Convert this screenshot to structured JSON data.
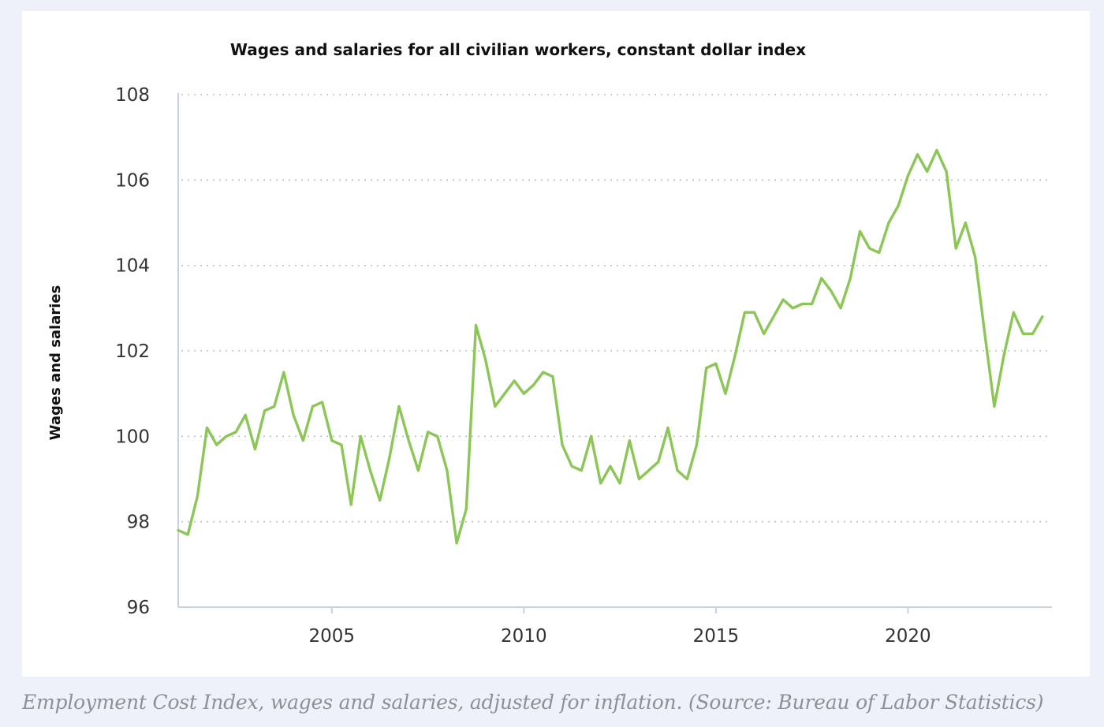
{
  "chart_data": {
    "type": "line",
    "title": "Wages and salaries for all civilian workers, constant dollar index",
    "xlabel": "",
    "ylabel": "Wages and salaries",
    "ylim": [
      96,
      108
    ],
    "yticks": [
      96,
      98,
      100,
      102,
      104,
      106,
      108
    ],
    "xlim": [
      2001,
      2023.75
    ],
    "xticks": [
      2005,
      2010,
      2015,
      2020
    ],
    "grid": "horizontal-dotted",
    "line_color": "#8cc656",
    "series": [
      {
        "x": [
          2001.0,
          2001.25,
          2001.5,
          2001.75,
          2002.0,
          2002.25,
          2002.5,
          2002.75,
          2003.0,
          2003.25,
          2003.5,
          2003.75,
          2004.0,
          2004.25,
          2004.5,
          2004.75,
          2005.0,
          2005.25,
          2005.5,
          2005.75,
          2006.0,
          2006.25,
          2006.5,
          2006.75,
          2007.0,
          2007.25,
          2007.5,
          2007.75,
          2008.0,
          2008.25,
          2008.5,
          2008.75,
          2009.0,
          2009.25,
          2009.5,
          2009.75,
          2010.0,
          2010.25,
          2010.5,
          2010.75,
          2011.0,
          2011.25,
          2011.5,
          2011.75,
          2012.0,
          2012.25,
          2012.5,
          2012.75,
          2013.0,
          2013.25,
          2013.5,
          2013.75,
          2014.0,
          2014.25,
          2014.5,
          2014.75,
          2015.0,
          2015.25,
          2015.5,
          2015.75,
          2016.0,
          2016.25,
          2016.5,
          2016.75,
          2017.0,
          2017.25,
          2017.5,
          2017.75,
          2018.0,
          2018.25,
          2018.5,
          2018.75,
          2019.0,
          2019.25,
          2019.5,
          2019.75,
          2020.0,
          2020.25,
          2020.5,
          2020.75,
          2021.0,
          2021.25,
          2021.5,
          2021.75,
          2022.0,
          2022.25,
          2022.5,
          2022.75,
          2023.0,
          2023.25,
          2023.5
        ],
        "y": [
          97.8,
          97.7,
          98.6,
          100.2,
          99.8,
          100.0,
          100.1,
          100.5,
          99.7,
          100.6,
          100.7,
          101.5,
          100.5,
          99.9,
          100.7,
          100.8,
          99.9,
          99.8,
          98.4,
          100.0,
          99.2,
          98.5,
          99.5,
          100.7,
          99.9,
          99.2,
          100.1,
          100.0,
          99.2,
          97.5,
          98.3,
          102.6,
          101.8,
          100.7,
          101.0,
          101.3,
          101.0,
          101.2,
          101.5,
          101.4,
          99.8,
          99.3,
          99.2,
          100.0,
          98.9,
          99.3,
          98.9,
          99.9,
          99.0,
          99.2,
          99.4,
          100.2,
          99.2,
          99.0,
          99.8,
          101.6,
          101.7,
          101.0,
          101.9,
          102.9,
          102.9,
          102.4,
          102.8,
          103.2,
          103.0,
          103.1,
          103.1,
          103.7,
          103.4,
          103.0,
          103.7,
          104.8,
          104.4,
          104.3,
          105.0,
          105.4,
          106.1,
          106.6,
          106.2,
          106.7,
          106.2,
          104.4,
          105.0,
          104.2,
          102.4,
          100.7,
          101.9,
          102.9,
          102.4,
          102.4,
          102.8
        ]
      }
    ]
  },
  "caption": "Employment Cost Index, wages and salaries, adjusted for inflation. (Source: Bureau of Labor Statistics)"
}
